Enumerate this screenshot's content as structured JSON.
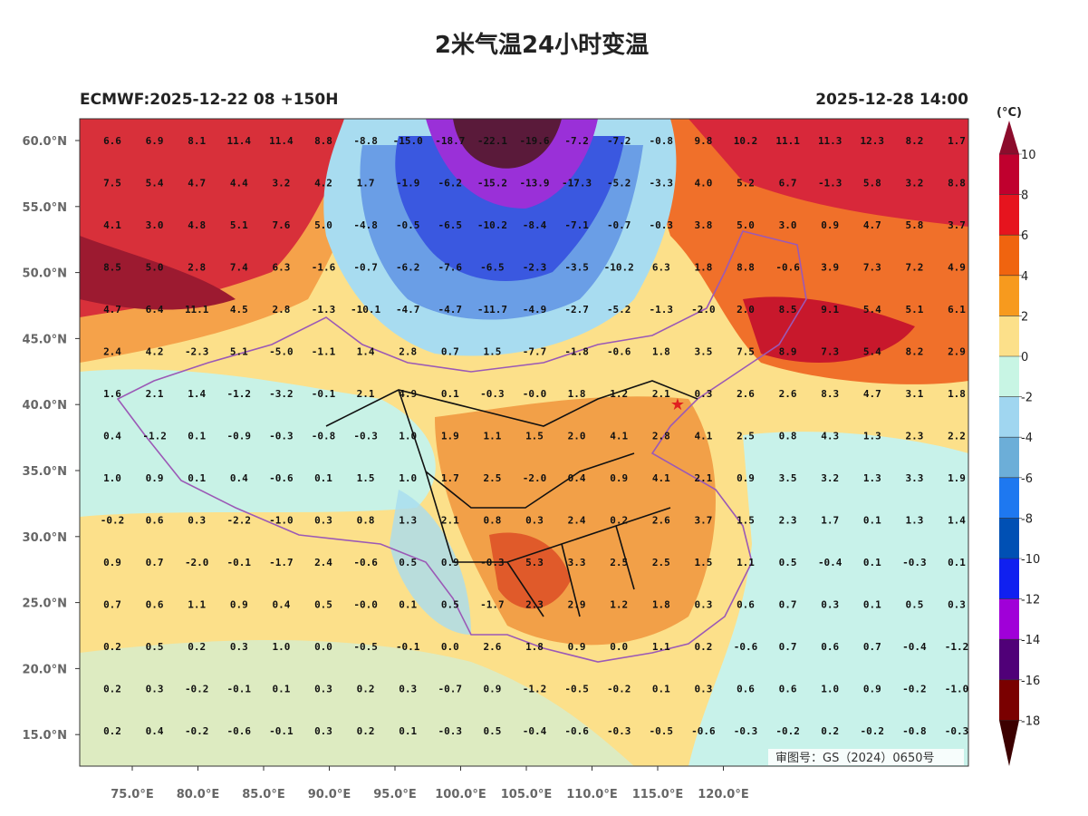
{
  "title": "2米气温24小时变温",
  "model_run": "ECMWF:2025-12-22 08 +150H",
  "valid_time": "2025-12-28 14:00",
  "map_approval": "审图号：GS（2024）0650号",
  "latitude_ticks": [
    {
      "value": 60,
      "label": "60.0°N"
    },
    {
      "value": 55,
      "label": "55.0°N"
    },
    {
      "value": 50,
      "label": "50.0°N"
    },
    {
      "value": 45,
      "label": "45.0°N"
    },
    {
      "value": 40,
      "label": "40.0°N"
    },
    {
      "value": 35,
      "label": "35.0°N"
    },
    {
      "value": 30,
      "label": "30.0°N"
    },
    {
      "value": 25,
      "label": "25.0°N"
    },
    {
      "value": 20,
      "label": "20.0°N"
    },
    {
      "value": 15,
      "label": "15.0°N"
    }
  ],
  "longitude_ticks": [
    {
      "value": 75,
      "label": "75.0°E"
    },
    {
      "value": 80,
      "label": "80.0°E"
    },
    {
      "value": 85,
      "label": "85.0°E"
    },
    {
      "value": 90,
      "label": "90.0°E"
    },
    {
      "value": 95,
      "label": "95.0°E"
    },
    {
      "value": 100,
      "label": "100.0°E"
    },
    {
      "value": 105,
      "label": "105.0°E"
    },
    {
      "value": 110,
      "label": "110.0°E"
    },
    {
      "value": 115,
      "label": "115.0°E"
    },
    {
      "value": 120,
      "label": "120.0°E"
    }
  ],
  "colorbar": {
    "unit": "(°C)",
    "levels": [
      10,
      8,
      6,
      4,
      2,
      0,
      -2,
      -4,
      -6,
      -8,
      -10,
      -12,
      -14,
      -16,
      -18
    ],
    "colors": [
      "#8c0c2c",
      "#c0002e",
      "#e6141e",
      "#f0640f",
      "#f79a1e",
      "#fce08a",
      "#c8f5e4",
      "#a0d6f0",
      "#6caed8",
      "#1e78f0",
      "#0050b4",
      "#1020f0",
      "#a000d8",
      "#500078",
      "#7a0000",
      "#3c0000"
    ]
  },
  "station_grid": {
    "rows": [
      [
        "6.6",
        "6.9",
        "8.1",
        "11.4",
        "11.4",
        "8.8",
        "-8.8",
        "-15.0",
        "-18.7",
        "-22.1",
        "-19.6",
        "-7.2",
        "-7.2",
        "-0.8",
        "9.8",
        "10.2",
        "11.1",
        "11.3",
        "12.3",
        "8.2",
        "1.7"
      ],
      [
        "7.5",
        "5.4",
        "4.7",
        "4.4",
        "3.2",
        "4.2",
        "1.7",
        "-1.9",
        "-6.2",
        "-15.2",
        "-13.9",
        "-17.3",
        "-5.2",
        "-3.3",
        "4.0",
        "5.2",
        "6.7",
        "-1.3",
        "5.8",
        "3.2",
        "8.8"
      ],
      [
        "4.1",
        "3.0",
        "4.8",
        "5.1",
        "7.6",
        "5.0",
        "-4.8",
        "-0.5",
        "-6.5",
        "-10.2",
        "-8.4",
        "-7.1",
        "-0.7",
        "-0.3",
        "3.8",
        "5.0",
        "3.0",
        "0.9",
        "4.7",
        "5.8",
        "3.7"
      ],
      [
        "8.5",
        "5.0",
        "2.8",
        "7.4",
        "6.3",
        "-1.6",
        "-0.7",
        "-6.2",
        "-7.6",
        "-6.5",
        "-2.3",
        "-3.5",
        "-10.2",
        "6.3",
        "1.8",
        "8.8",
        "-0.6",
        "3.9",
        "7.3",
        "7.2",
        "4.9"
      ],
      [
        "4.7",
        "6.4",
        "11.1",
        "4.5",
        "2.8",
        "-1.3",
        "-10.1",
        "-4.7",
        "-4.7",
        "-11.7",
        "-4.9",
        "-2.7",
        "-5.2",
        "-1.3",
        "-2.0",
        "2.0",
        "8.5",
        "9.1",
        "5.4",
        "5.1",
        "6.1"
      ],
      [
        "2.4",
        "4.2",
        "-2.3",
        "5.1",
        "-5.0",
        "-1.1",
        "1.4",
        "2.8",
        "0.7",
        "1.5",
        "-7.7",
        "-1.8",
        "-0.6",
        "1.8",
        "3.5",
        "7.5",
        "8.9",
        "7.3",
        "5.4",
        "8.2",
        "2.9"
      ],
      [
        "1.6",
        "2.1",
        "1.4",
        "-1.2",
        "-3.2",
        "-0.1",
        "2.1",
        "4.9",
        "0.1",
        "-0.3",
        "-0.0",
        "1.8",
        "1.2",
        "2.1",
        "0.3",
        "2.6",
        "2.6",
        "8.3",
        "4.7",
        "3.1",
        "1.8"
      ],
      [
        "0.4",
        "-1.2",
        "0.1",
        "-0.9",
        "-0.3",
        "-0.8",
        "-0.3",
        "1.0",
        "1.9",
        "1.1",
        "1.5",
        "2.0",
        "4.1",
        "2.8",
        "4.1",
        "2.5",
        "0.8",
        "4.3",
        "1.3",
        "2.3",
        "2.2"
      ],
      [
        "1.0",
        "0.9",
        "0.1",
        "0.4",
        "-0.6",
        "0.1",
        "1.5",
        "1.0",
        "1.7",
        "2.5",
        "-2.0",
        "0.4",
        "0.9",
        "4.1",
        "2.1",
        "0.9",
        "3.5",
        "3.2",
        "1.3",
        "3.3",
        "1.9"
      ],
      [
        "-0.2",
        "0.6",
        "0.3",
        "-2.2",
        "-1.0",
        "0.3",
        "0.8",
        "1.3",
        "2.1",
        "0.8",
        "0.3",
        "2.4",
        "0.2",
        "2.6",
        "3.7",
        "1.5",
        "2.3",
        "1.7",
        "0.1",
        "1.3",
        "1.4"
      ],
      [
        "0.9",
        "0.7",
        "-2.0",
        "-0.1",
        "-1.7",
        "2.4",
        "-0.6",
        "0.5",
        "0.9",
        "-0.3",
        "5.3",
        "3.3",
        "2.5",
        "2.5",
        "1.5",
        "1.1",
        "0.5",
        "-0.4",
        "0.1",
        "-0.3",
        "0.1"
      ],
      [
        "0.7",
        "0.6",
        "1.1",
        "0.9",
        "0.4",
        "0.5",
        "-0.0",
        "0.1",
        "0.5",
        "-1.7",
        "2.3",
        "2.9",
        "1.2",
        "1.8",
        "0.3",
        "0.6",
        "0.7",
        "0.3",
        "0.1",
        "0.5",
        "0.3"
      ],
      [
        "0.2",
        "0.5",
        "0.2",
        "0.3",
        "1.0",
        "0.0",
        "-0.5",
        "-0.1",
        "0.0",
        "2.6",
        "1.8",
        "0.9",
        "0.0",
        "1.1",
        "0.2",
        "-0.6",
        "0.7",
        "0.6",
        "0.7",
        "-0.4",
        "-1.2"
      ],
      [
        "0.2",
        "0.3",
        "-0.2",
        "-0.1",
        "0.1",
        "0.3",
        "0.2",
        "0.3",
        "-0.7",
        "0.9",
        "-1.2",
        "-0.5",
        "-0.2",
        "0.1",
        "0.3",
        "0.6",
        "0.6",
        "1.0",
        "0.9",
        "-0.2",
        "-1.0"
      ],
      [
        "0.2",
        "0.4",
        "-0.2",
        "-0.6",
        "-0.1",
        "0.3",
        "0.2",
        "0.1",
        "-0.3",
        "0.5",
        "-0.4",
        "-0.6",
        "-0.3",
        "-0.5",
        "-0.6",
        "-0.3",
        "-0.2",
        "0.2",
        "-0.2",
        "-0.8",
        "-0.3"
      ]
    ]
  }
}
